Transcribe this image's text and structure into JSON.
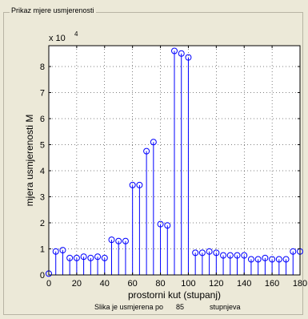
{
  "panel": {
    "title": "Prikaz mjere usmjerenosti"
  },
  "footer": {
    "prefix": "Slika je usmjerena po",
    "value": "85",
    "suffix": "stupnjeva"
  },
  "colors": {
    "stem": "#0000ff",
    "axes": "#000000",
    "grid": "#000000",
    "plot_bg": "#ffffff",
    "window_bg": "#ece9d8"
  },
  "chart_data": {
    "type": "scatter",
    "style": "stem",
    "xlabel": "prostorni kut (stupanj)",
    "ylabel": "mjera usmjerenosti M",
    "exponent_label": "x 10",
    "exponent_power": "4",
    "xlim": [
      0,
      180
    ],
    "ylim": [
      0,
      8.8
    ],
    "xticks": [
      "0",
      "20",
      "40",
      "60",
      "80",
      "100",
      "120",
      "140",
      "160",
      "180"
    ],
    "yticks": [
      "0",
      "1",
      "2",
      "3",
      "4",
      "5",
      "6",
      "7",
      "8"
    ],
    "grid": true,
    "x": [
      0,
      5,
      10,
      15,
      20,
      25,
      30,
      35,
      40,
      45,
      50,
      55,
      60,
      65,
      70,
      75,
      80,
      85,
      90,
      95,
      100,
      105,
      110,
      115,
      120,
      125,
      130,
      135,
      140,
      145,
      150,
      155,
      160,
      165,
      170,
      175,
      180
    ],
    "values": [
      0.05,
      0.9,
      0.95,
      0.65,
      0.65,
      0.7,
      0.65,
      0.7,
      0.65,
      1.35,
      1.3,
      1.3,
      3.45,
      3.45,
      4.75,
      5.1,
      1.95,
      1.9,
      8.6,
      8.5,
      8.35,
      0.85,
      0.85,
      0.9,
      0.85,
      0.75,
      0.75,
      0.75,
      0.75,
      0.6,
      0.6,
      0.65,
      0.6,
      0.6,
      0.6,
      0.9,
      0.9
    ]
  }
}
